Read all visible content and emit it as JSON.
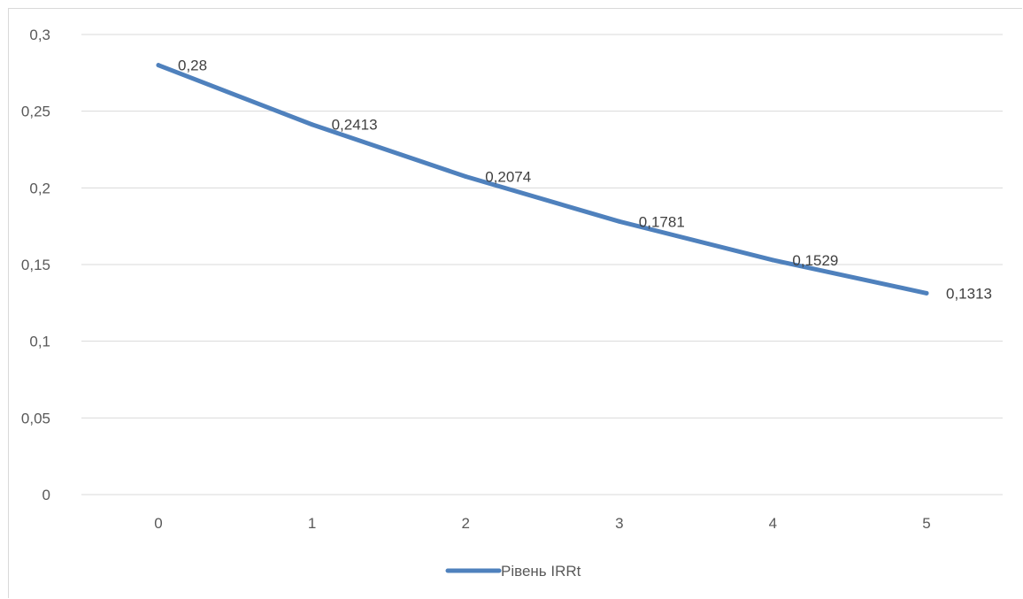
{
  "chart_data": {
    "type": "line",
    "title": "",
    "xlabel": "",
    "ylabel": "",
    "x": [
      0,
      1,
      2,
      3,
      4,
      5
    ],
    "x_tick_labels": [
      "0",
      "1",
      "2",
      "3",
      "4",
      "5"
    ],
    "y_tick_labels": [
      "0",
      "0,05",
      "0,1",
      "0,15",
      "0,2",
      "0,25",
      "0,3"
    ],
    "y_ticks": [
      0,
      0.05,
      0.1,
      0.15,
      0.2,
      0.25,
      0.3
    ],
    "ylim": [
      0,
      0.3
    ],
    "grid": true,
    "legend_position": "bottom",
    "series": [
      {
        "name": "Рівень IRRt",
        "values": [
          0.28,
          0.2413,
          0.2074,
          0.1781,
          0.1529,
          0.1313
        ],
        "data_labels": [
          "0,28",
          "0,2413",
          "0,2074",
          "0,1781",
          "0,1529",
          "0,1313"
        ],
        "color": "#4f81bd"
      }
    ]
  }
}
